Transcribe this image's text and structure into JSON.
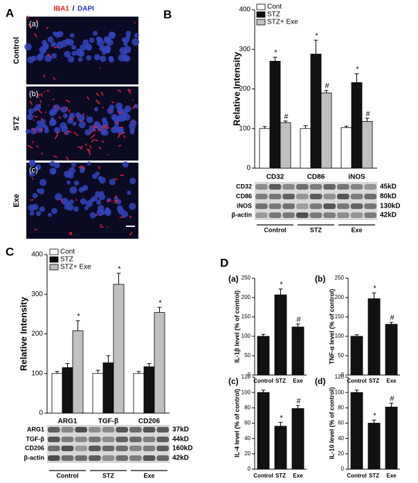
{
  "panel_labels": [
    "A",
    "B",
    "C",
    "D"
  ],
  "panel_a": {
    "stain": [
      "IBA1",
      "/",
      "DAPI"
    ],
    "rows": [
      {
        "tag": "(a)",
        "label": "Control"
      },
      {
        "tag": "(b)",
        "label": "STZ"
      },
      {
        "tag": "(c)",
        "label": "Exe"
      }
    ]
  },
  "blots": [
    {
      "bands": [
        {
          "name": "CD32",
          "size": "45kD"
        },
        {
          "name": "CD86",
          "size": "80kD"
        },
        {
          "name": "iNOS",
          "size": "130kD"
        },
        {
          "name": "β-actin",
          "size": "42kD"
        }
      ],
      "groups": [
        "Control",
        "STZ",
        "Exe"
      ]
    },
    {
      "bands": [
        {
          "name": "ARG1",
          "size": "37kD"
        },
        {
          "name": "TGF-β",
          "size": "44kD"
        },
        {
          "name": "CD206",
          "size": "160kD"
        },
        {
          "name": "β-actin",
          "size": "42kD"
        }
      ],
      "groups": [
        "Control",
        "STZ",
        "Exe"
      ]
    }
  ],
  "chart_data": [
    {
      "type": "bar",
      "y_label": "Relative Intensity",
      "categories": [
        "CD32",
        "CD86",
        "iNOS"
      ],
      "series": [
        {
          "name": "Cont",
          "color": "#ffffff",
          "values": [
            100,
            100,
            102
          ],
          "errors": [
            5,
            7,
            4
          ]
        },
        {
          "name": "STZ",
          "color": "#111111",
          "values": [
            270,
            288,
            216
          ],
          "errors": [
            10,
            35,
            22
          ],
          "labels": [
            "*",
            "*",
            "*"
          ]
        },
        {
          "name": "STZ+ Exe",
          "color": "#c0c0c0",
          "values": [
            115,
            190,
            118
          ],
          "errors": [
            4,
            6,
            8
          ],
          "labels": [
            "#",
            "#",
            "#"
          ]
        }
      ],
      "ylim": [
        0,
        400
      ],
      "yticks": [
        0,
        100,
        200,
        300,
        400
      ],
      "legend": "upper left"
    },
    {
      "type": "bar",
      "y_label": "Relative Intensity",
      "categories": [
        "ARG1",
        "TGF-β",
        "CD206"
      ],
      "series": [
        {
          "name": "Cont",
          "color": "#ffffff",
          "values": [
            100,
            100,
            100
          ],
          "errors": [
            5,
            8,
            5
          ]
        },
        {
          "name": "STZ",
          "color": "#111111",
          "values": [
            115,
            127,
            117
          ],
          "errors": [
            10,
            18,
            8
          ]
        },
        {
          "name": "STZ+ Exe",
          "color": "#c0c0c0",
          "values": [
            208,
            325,
            254
          ],
          "errors": [
            25,
            28,
            13
          ],
          "labels": [
            "*",
            "*",
            "*"
          ]
        }
      ],
      "ylim": [
        0,
        400
      ],
      "yticks": [
        0,
        100,
        200,
        300,
        400
      ],
      "legend": "upper left"
    },
    {
      "type": "bar",
      "label": "(a)",
      "y_label": "IL-1β level (% of control)",
      "categories": [
        "Control",
        "STZ",
        "Exe"
      ],
      "series": [
        {
          "color": "#111111",
          "values": [
            100,
            207,
            124
          ],
          "errors": [
            5,
            15,
            8
          ],
          "labels": [
            null,
            "*",
            "#"
          ]
        }
      ],
      "ylim": [
        0,
        250
      ],
      "yticks": [
        0,
        50,
        100,
        150,
        200,
        250
      ]
    },
    {
      "type": "bar",
      "label": "(b)",
      "y_label": "TNF-α level (% of control)",
      "categories": [
        "Control",
        "STZ",
        "Exe"
      ],
      "series": [
        {
          "color": "#111111",
          "values": [
            100,
            197,
            131
          ],
          "errors": [
            4,
            15,
            5
          ],
          "labels": [
            null,
            "*",
            "#"
          ]
        }
      ],
      "ylim": [
        0,
        250
      ],
      "yticks": [
        0,
        50,
        100,
        150,
        200,
        250
      ]
    },
    {
      "type": "bar",
      "label": "(c)",
      "y_label": "IL-4 level (% of control)",
      "categories": [
        "Control",
        "STZ",
        "Exe"
      ],
      "series": [
        {
          "color": "#111111",
          "values": [
            100,
            56,
            79
          ],
          "errors": [
            3,
            5,
            4
          ],
          "labels": [
            null,
            "*",
            "#"
          ]
        }
      ],
      "ylim": [
        0,
        120
      ],
      "yticks": [
        0,
        20,
        40,
        60,
        80,
        100,
        120
      ]
    },
    {
      "type": "bar",
      "label": "(d)",
      "y_label": "IL-10 level (% of control)",
      "categories": [
        "Control",
        "STZ",
        "Exe"
      ],
      "series": [
        {
          "color": "#111111",
          "values": [
            100,
            60,
            81
          ],
          "errors": [
            3,
            4,
            5
          ],
          "labels": [
            null,
            "*",
            "#"
          ]
        }
      ],
      "ylim": [
        0,
        120
      ],
      "yticks": [
        0,
        20,
        40,
        60,
        80,
        100,
        120
      ]
    }
  ]
}
